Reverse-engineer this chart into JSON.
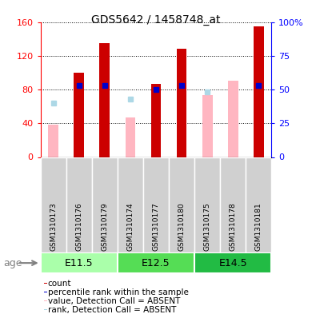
{
  "title": "GDS5642 / 1458748_at",
  "samples": [
    "GSM1310173",
    "GSM1310176",
    "GSM1310179",
    "GSM1310174",
    "GSM1310177",
    "GSM1310180",
    "GSM1310175",
    "GSM1310178",
    "GSM1310181"
  ],
  "count_values": [
    null,
    100,
    135,
    null,
    87,
    128,
    null,
    null,
    155
  ],
  "rank_pct": [
    null,
    53,
    53,
    null,
    50,
    53,
    null,
    null,
    53
  ],
  "absent_value": [
    38,
    null,
    null,
    47,
    null,
    null,
    73,
    90,
    null
  ],
  "absent_rank_pct": [
    40,
    null,
    null,
    43,
    null,
    null,
    48,
    null,
    null
  ],
  "ylim_left": [
    0,
    160
  ],
  "ylim_right": [
    0,
    100
  ],
  "yticks_left": [
    0,
    40,
    80,
    120,
    160
  ],
  "yticks_right": [
    0,
    25,
    50,
    75,
    100
  ],
  "ytick_labels_right": [
    "0",
    "25",
    "50",
    "75",
    "100%"
  ],
  "count_color": "#CC0000",
  "rank_color": "#0000CC",
  "absent_value_color": "#FFB6C1",
  "absent_rank_color": "#ADD8E6",
  "plot_bg": "#FFFFFF",
  "sample_box_color": "#D0D0D0",
  "group_colors": [
    "#AAFFAA",
    "#55DD55",
    "#22BB44"
  ],
  "group_labels": [
    "E11.5",
    "E12.5",
    "E14.5"
  ],
  "group_starts": [
    0,
    3,
    6
  ],
  "group_ends": [
    2,
    5,
    8
  ],
  "bar_width": 0.4,
  "age_label": "age"
}
